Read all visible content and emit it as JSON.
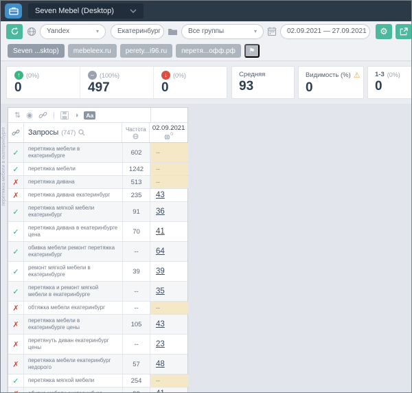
{
  "header": {
    "project_name": "Seven Mebel (Desktop)"
  },
  "toolbar": {
    "search_engine": "Yandex",
    "region": "Екатеринбург",
    "groups_filter": "Все группы",
    "date_range": "02.09.2021 — 27.09.2021"
  },
  "tabs": [
    {
      "label": "Seven ...sktop)",
      "active": true
    },
    {
      "label": "mebeleex.ru",
      "active": false
    },
    {
      "label": "perety...i96.ru",
      "active": false
    },
    {
      "label": "перетя...офф.рф",
      "active": false
    }
  ],
  "stats": {
    "improved": {
      "percent": "(0%)",
      "value": "0"
    },
    "unchanged": {
      "percent": "(100%)",
      "value": "497"
    },
    "declined": {
      "percent": "(0%)",
      "value": "0"
    },
    "average": {
      "label": "Средняя",
      "value": "93"
    },
    "visibility": {
      "label": "Видимость (%)",
      "value": "0"
    },
    "top1_3": {
      "label": "1-3",
      "percent": "(0%)",
      "value": "0"
    }
  },
  "table": {
    "group_label": "перетяжка мебели в екатеринбурге",
    "queries_header": "Запросы",
    "queries_count": "(747)",
    "frequency_header": "Частота",
    "date_header": "02.09.2021",
    "date_header_sup": "0",
    "rows": [
      {
        "status": "check",
        "query": "перетяжка мебели в екатеринбурге",
        "frequency": "602",
        "position": "--"
      },
      {
        "status": "check",
        "query": "перетяжка мебели",
        "frequency": "1242",
        "position": "--"
      },
      {
        "status": "cross",
        "query": "перетяжка дивана",
        "frequency": "513",
        "position": "--"
      },
      {
        "status": "cross",
        "query": "перетяжка дивана екатеринбург",
        "frequency": "235",
        "position": "43"
      },
      {
        "status": "check",
        "query": "перетяжка мягкой мебели екатеринбург",
        "frequency": "91",
        "position": "36"
      },
      {
        "status": "check",
        "query": "перетяжка дивана в екатеринбурге цена",
        "frequency": "70",
        "position": "41"
      },
      {
        "status": "check",
        "query": "обивка мебели ремонт перетяжка екатеринбург",
        "frequency": "--",
        "position": "64"
      },
      {
        "status": "check",
        "query": "ремонт мягкой мебели в екатеринбурге",
        "frequency": "39",
        "position": "39"
      },
      {
        "status": "check",
        "query": "перетяжка и ремонт мягкой мебели в екатеринбурге",
        "frequency": "--",
        "position": "35"
      },
      {
        "status": "cross",
        "query": "обтяжка мебели екатеринбург",
        "frequency": "--",
        "position": "--"
      },
      {
        "status": "cross",
        "query": "перетяжка мебели в екатеринбурге цены",
        "frequency": "105",
        "position": "43"
      },
      {
        "status": "cross",
        "query": "перетянуть диван екатеринбург цены",
        "frequency": "--",
        "position": "23"
      },
      {
        "status": "cross",
        "query": "перетяжка мебели екатеринбург недорого",
        "frequency": "57",
        "position": "48"
      },
      {
        "status": "check",
        "query": "перетяжка мягкой мебели",
        "frequency": "254",
        "position": "--"
      },
      {
        "status": "cross",
        "query": "обивка мебели екатеринбург",
        "frequency": "93",
        "position": "41"
      }
    ]
  },
  "icons": {
    "gear": "⚙",
    "flag": "⚑",
    "sort": "⇅",
    "filled_circle": "◉",
    "contrast": "◑",
    "font_badge": "Aa",
    "caret": "▾",
    "warning": "⚠",
    "up_arrow": "↑",
    "minus": "–",
    "down_arrow": "↓",
    "check": "✓",
    "cross": "✗",
    "pipe": "|"
  },
  "colors": {
    "header_bg": "#2c3947",
    "accent_green": "#4cb89e",
    "status_up": "#3cb583",
    "status_same": "#9aa3ad",
    "status_down": "#d94f43",
    "check_green": "#2fae74",
    "cross_red": "#c84b3c",
    "empty_cell_beige": "#f4e8c6",
    "warning_orange": "#f0a033"
  }
}
